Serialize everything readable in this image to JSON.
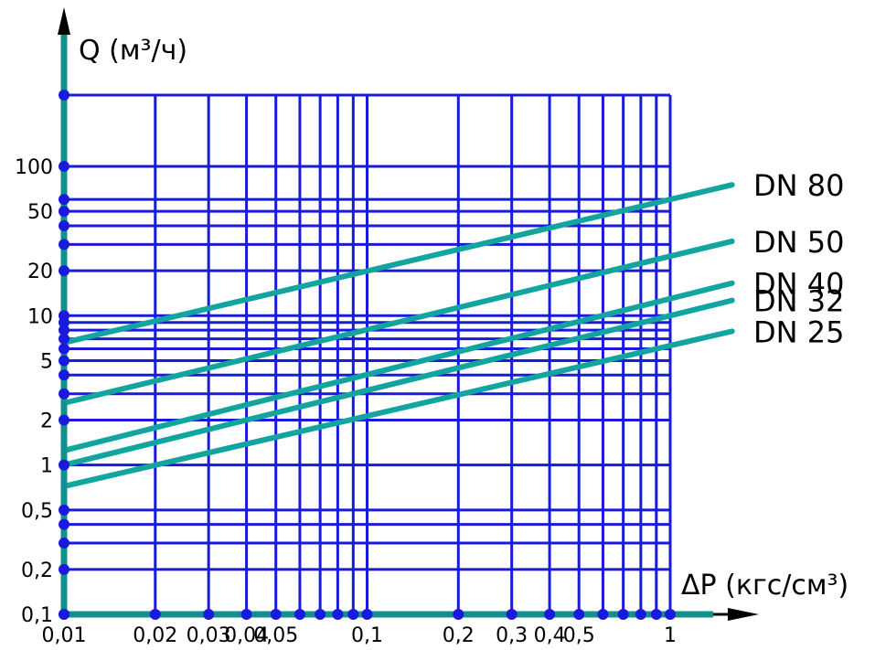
{
  "colors": {
    "grid": "#1a1adc",
    "axis": "#12908e",
    "series": "#12a5a0",
    "arrow": "#000000",
    "text": "#000000",
    "background": "#ffffff"
  },
  "chart_data": {
    "type": "line",
    "title": "",
    "xlabel": "ΔP (кгс/см³)",
    "ylabel": "Q (м³/ч)",
    "x_scale": "log",
    "y_scale": "log",
    "xlim": [
      0.01,
      1
    ],
    "ylim": [
      0.1,
      300
    ],
    "grid": true,
    "x_ticks": [
      {
        "value": 0.01,
        "label": "0,01"
      },
      {
        "value": 0.02,
        "label": "0,02"
      },
      {
        "value": 0.03,
        "label": "0,03"
      },
      {
        "value": 0.04,
        "label": "0,04"
      },
      {
        "value": 0.05,
        "label": "0,05"
      },
      {
        "value": 0.1,
        "label": "0,1"
      },
      {
        "value": 0.2,
        "label": "0,2"
      },
      {
        "value": 0.3,
        "label": "0,3"
      },
      {
        "value": 0.4,
        "label": "0,4"
      },
      {
        "value": 0.5,
        "label": "0,5"
      },
      {
        "value": 1,
        "label": "1"
      }
    ],
    "x_grid": [
      0.02,
      0.03,
      0.04,
      0.05,
      0.06,
      0.07,
      0.08,
      0.09,
      0.1,
      0.2,
      0.3,
      0.4,
      0.5,
      0.6,
      0.7,
      0.8,
      0.9,
      1
    ],
    "y_ticks": [
      {
        "value": 0.1,
        "label": "0,1"
      },
      {
        "value": 0.2,
        "label": "0,2"
      },
      {
        "value": 0.5,
        "label": "0,5"
      },
      {
        "value": 1,
        "label": "1"
      },
      {
        "value": 2,
        "label": "2"
      },
      {
        "value": 5,
        "label": "5"
      },
      {
        "value": 10,
        "label": "10"
      },
      {
        "value": 20,
        "label": "20"
      },
      {
        "value": 50,
        "label": "50"
      },
      {
        "value": 100,
        "label": "100"
      }
    ],
    "y_grid": [
      0.2,
      0.3,
      0.4,
      0.5,
      1,
      2,
      3,
      4,
      5,
      6,
      7,
      8,
      9,
      10,
      20,
      30,
      40,
      50,
      60,
      100,
      300
    ],
    "series": [
      {
        "name": "DN 80",
        "x": [
          0.01,
          1
        ],
        "y": [
          6.6,
          60
        ]
      },
      {
        "name": "DN 50",
        "x": [
          0.01,
          1
        ],
        "y": [
          2.6,
          25
        ]
      },
      {
        "name": "DN 40",
        "x": [
          0.01,
          1
        ],
        "y": [
          1.25,
          13
        ]
      },
      {
        "name": "DN 32",
        "x": [
          0.01,
          1
        ],
        "y": [
          1.0,
          10
        ]
      },
      {
        "name": "DN 25",
        "x": [
          0.01,
          1
        ],
        "y": [
          0.72,
          6.3
        ]
      }
    ]
  }
}
